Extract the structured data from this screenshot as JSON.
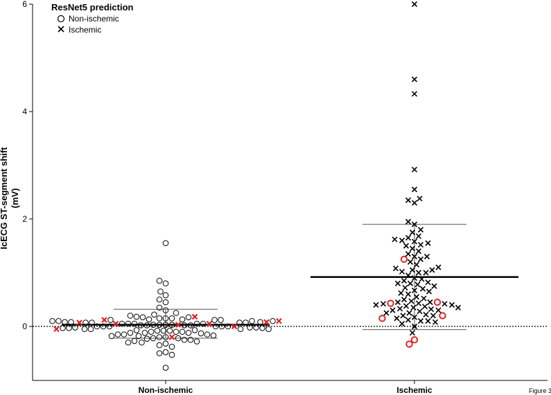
{
  "chart_data": {
    "type": "scatter",
    "subtype": "beeswarm",
    "ylabel_line1": "IcECG  ST-segment shift",
    "ylabel_line2": "(mV)",
    "ylim": [
      -1.0,
      6.0
    ],
    "yticks": [
      0,
      2,
      4,
      6
    ],
    "categories": [
      "Non-ischemic",
      "Ischemic"
    ],
    "reference_line": 0,
    "figure_label": "Figure 3",
    "legend": {
      "title": "ResNet5 prediction",
      "position": "top-left",
      "entries": [
        {
          "marker": "circle",
          "label": "Non-ischemic"
        },
        {
          "marker": "cross",
          "label": "Ischemic"
        }
      ]
    },
    "colors": {
      "correct": "#000000",
      "misclassified": "#e32222"
    },
    "summary": [
      {
        "category": "Non-ischemic",
        "mean": 0.03,
        "sd_upper": 0.32,
        "sd_lower": -0.22
      },
      {
        "category": "Ischemic",
        "mean": 0.92,
        "sd_upper": 1.9,
        "sd_lower": -0.06
      }
    ],
    "series": [
      {
        "group": "Non-ischemic",
        "prediction": "Non-ischemic",
        "marker": "circle",
        "color": "#000000",
        "values": [
          -0.77,
          -0.53,
          -0.5,
          -0.48,
          -0.38,
          -0.35,
          -0.32,
          -0.3,
          -0.3,
          -0.28,
          -0.27,
          -0.25,
          -0.25,
          -0.23,
          -0.22,
          -0.22,
          -0.2,
          -0.2,
          -0.18,
          -0.18,
          -0.17,
          -0.15,
          -0.15,
          -0.15,
          -0.13,
          -0.12,
          -0.12,
          -0.12,
          -0.1,
          -0.1,
          -0.1,
          -0.08,
          -0.08,
          -0.08,
          -0.07,
          -0.07,
          -0.05,
          -0.05,
          -0.05,
          -0.05,
          -0.03,
          -0.03,
          -0.03,
          -0.02,
          -0.02,
          -0.02,
          0.0,
          0.0,
          0.0,
          0.0,
          0.0,
          0.0,
          0.02,
          0.02,
          0.02,
          0.02,
          0.03,
          0.03,
          0.03,
          0.03,
          0.05,
          0.05,
          0.05,
          0.05,
          0.05,
          0.07,
          0.07,
          0.07,
          0.07,
          0.08,
          0.08,
          0.08,
          0.1,
          0.1,
          0.1,
          0.1,
          0.12,
          0.12,
          0.12,
          0.13,
          0.13,
          0.15,
          0.15,
          0.15,
          0.17,
          0.17,
          0.18,
          0.2,
          0.22,
          0.25,
          0.3,
          0.35,
          0.45,
          0.5,
          0.58,
          0.65,
          0.8,
          0.85,
          1.55
        ]
      },
      {
        "group": "Non-ischemic",
        "prediction": "Ischemic",
        "marker": "cross",
        "color": "#e32222",
        "values": [
          -0.2,
          -0.05,
          0.0,
          0.03,
          0.05,
          0.05,
          0.07,
          0.08,
          0.1,
          0.12,
          0.18
        ]
      },
      {
        "group": "Ischemic",
        "prediction": "Ischemic",
        "marker": "cross",
        "color": "#000000",
        "values": [
          -0.12,
          0.0,
          0.05,
          0.08,
          0.1,
          0.1,
          0.12,
          0.15,
          0.17,
          0.2,
          0.2,
          0.22,
          0.25,
          0.25,
          0.28,
          0.3,
          0.3,
          0.32,
          0.33,
          0.35,
          0.35,
          0.37,
          0.38,
          0.4,
          0.4,
          0.42,
          0.42,
          0.43,
          0.45,
          0.45,
          0.47,
          0.5,
          0.52,
          0.55,
          0.6,
          0.62,
          0.65,
          0.67,
          0.7,
          0.72,
          0.75,
          0.78,
          0.8,
          0.8,
          0.82,
          0.85,
          0.88,
          0.9,
          0.95,
          1.0,
          1.0,
          1.02,
          1.05,
          1.05,
          1.08,
          1.1,
          1.15,
          1.2,
          1.25,
          1.3,
          1.3,
          1.35,
          1.4,
          1.45,
          1.5,
          1.52,
          1.55,
          1.58,
          1.6,
          1.62,
          1.65,
          1.68,
          1.75,
          1.8,
          1.9,
          1.95,
          2.3,
          2.35,
          2.38,
          2.55,
          2.92,
          4.33,
          4.6,
          6.0
        ]
      },
      {
        "group": "Ischemic",
        "prediction": "Non-ischemic",
        "marker": "circle",
        "color": "#e32222",
        "values": [
          -0.33,
          -0.25,
          0.15,
          0.2,
          0.43,
          0.45,
          1.25
        ]
      }
    ]
  }
}
